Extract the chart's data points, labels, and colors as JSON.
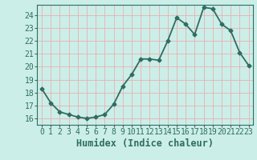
{
  "title": "",
  "xlabel": "Humidex (Indice chaleur)",
  "ylabel": "",
  "x": [
    0,
    1,
    2,
    3,
    4,
    5,
    6,
    7,
    8,
    9,
    10,
    11,
    12,
    13,
    14,
    15,
    16,
    17,
    18,
    19,
    20,
    21,
    22,
    23
  ],
  "y": [
    18.3,
    17.2,
    16.5,
    16.3,
    16.1,
    16.0,
    16.1,
    16.3,
    17.1,
    18.5,
    19.4,
    20.6,
    20.6,
    20.5,
    22.0,
    23.8,
    23.3,
    22.5,
    24.6,
    24.5,
    23.3,
    22.8,
    21.1,
    20.1
  ],
  "line_color": "#2e6e62",
  "marker": "D",
  "marker_size": 2.5,
  "bg_color": "#cceee8",
  "grid_color": "#aaddcc",
  "tick_color": "#2e6e62",
  "label_color": "#2e6e62",
  "xlim": [
    -0.5,
    23.5
  ],
  "ylim": [
    15.5,
    24.8
  ],
  "yticks": [
    16,
    17,
    18,
    19,
    20,
    21,
    22,
    23,
    24
  ],
  "xticks": [
    0,
    1,
    2,
    3,
    4,
    5,
    6,
    7,
    8,
    9,
    10,
    11,
    12,
    13,
    14,
    15,
    16,
    17,
    18,
    19,
    20,
    21,
    22,
    23
  ],
  "font_family": "monospace",
  "xlabel_fontsize": 8.5,
  "tick_fontsize": 7,
  "line_width": 1.3
}
